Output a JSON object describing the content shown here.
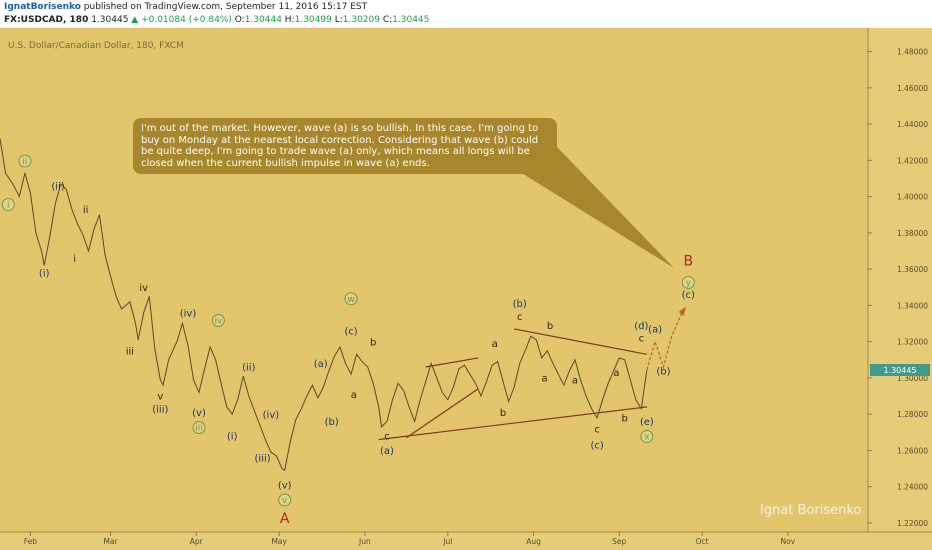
{
  "header": {
    "author": "IgnatBorisenko",
    "published_text": " published on TradingView.com, September 11, 2016 15:17 EST",
    "symbol": "FX:USDCAD, 180",
    "last": "1.30445",
    "change": "▲ +0.01084 (+0.84%)",
    "o_label": "O:",
    "o_value": "1.30444",
    "h_label": "H:",
    "h_value": "1.30499",
    "l_label": "L:",
    "l_value": "1.30209",
    "c_label": "C:",
    "c_value": "1.30445"
  },
  "legend": "U.S. Dollar/Canadian Dollar, 180, FXCM",
  "price_tag": "1.30445",
  "callout": "I'm out of the market. However, wave (a) is so bullish. In this case, I'm going to\nbuy on Monday at the nearest local correction. Considering that wave (b) could\nbe quite deep, I'm going to trade wave (a) only, which means all longs will be\nclosed when the current bullish impulse in wave (a) ends.",
  "signature": "Ignat Borisenko",
  "colors": {
    "background": "#e3c56b",
    "axis_bg": "#e6cc78",
    "line": "#5a4c28",
    "trend": "#7a3a1c",
    "green_circle": "#6f9a3c",
    "blue_text": "#1d3568",
    "red_label": "#b3261e",
    "callout": "#a8872c",
    "price_tag": "#3e9a8a"
  },
  "chart_data": {
    "type": "line",
    "title": "U.S. Dollar/Canadian Dollar, 180, FXCM",
    "x_ticks": [
      "Feb",
      "Mar",
      "Apr",
      "May",
      "Jun",
      "Jul",
      "Aug",
      "Sep",
      "Oct",
      "Nov"
    ],
    "y_ticks": [
      "1.48000",
      "1.46000",
      "1.44000",
      "1.42000",
      "1.40000",
      "1.38000",
      "1.36000",
      "1.34000",
      "1.32000",
      "1.30000",
      "1.28000",
      "1.26000",
      "1.24000",
      "1.22000"
    ],
    "ylim": [
      1.215,
      1.493
    ],
    "xlim": [
      "2016-01-21",
      "2016-11-30"
    ],
    "series": [
      {
        "values": [
          [
            "2016-01-21",
            1.432
          ],
          [
            "2016-01-23",
            1.413
          ],
          [
            "2016-01-26",
            1.406
          ],
          [
            "2016-01-28",
            1.4
          ],
          [
            "2016-01-30",
            1.413
          ],
          [
            "2016-02-01",
            1.402
          ],
          [
            "2016-02-03",
            1.38
          ],
          [
            "2016-02-05",
            1.37
          ],
          [
            "2016-02-06",
            1.362
          ],
          [
            "2016-02-08",
            1.378
          ],
          [
            "2016-02-10",
            1.396
          ],
          [
            "2016-02-12",
            1.407
          ],
          [
            "2016-02-14",
            1.404
          ],
          [
            "2016-02-16",
            1.393
          ],
          [
            "2016-02-18",
            1.385
          ],
          [
            "2016-02-20",
            1.379
          ],
          [
            "2016-02-22",
            1.37
          ],
          [
            "2016-02-24",
            1.382
          ],
          [
            "2016-02-26",
            1.39
          ],
          [
            "2016-02-28",
            1.368
          ],
          [
            "2016-03-01",
            1.356
          ],
          [
            "2016-03-03",
            1.345
          ],
          [
            "2016-03-05",
            1.338
          ],
          [
            "2016-03-08",
            1.342
          ],
          [
            "2016-03-10",
            1.33
          ],
          [
            "2016-03-11",
            1.321
          ],
          [
            "2016-03-13",
            1.336
          ],
          [
            "2016-03-15",
            1.345
          ],
          [
            "2016-03-17",
            1.316
          ],
          [
            "2016-03-19",
            1.299
          ],
          [
            "2016-03-20",
            1.296
          ],
          [
            "2016-03-22",
            1.31
          ],
          [
            "2016-03-25",
            1.32
          ],
          [
            "2016-03-27",
            1.33
          ],
          [
            "2016-03-29",
            1.318
          ],
          [
            "2016-03-31",
            1.299
          ],
          [
            "2016-04-02",
            1.292
          ],
          [
            "2016-04-04",
            1.305
          ],
          [
            "2016-04-06",
            1.317
          ],
          [
            "2016-04-08",
            1.31
          ],
          [
            "2016-04-10",
            1.297
          ],
          [
            "2016-04-12",
            1.284
          ],
          [
            "2016-04-14",
            1.28
          ],
          [
            "2016-04-16",
            1.288
          ],
          [
            "2016-04-18",
            1.301
          ],
          [
            "2016-04-20",
            1.29
          ],
          [
            "2016-04-22",
            1.282
          ],
          [
            "2016-04-24",
            1.274
          ],
          [
            "2016-04-26",
            1.266
          ],
          [
            "2016-04-28",
            1.259
          ],
          [
            "2016-04-30",
            1.257
          ],
          [
            "2016-05-02",
            1.25
          ],
          [
            "2016-05-03",
            1.249
          ],
          [
            "2016-05-05",
            1.265
          ],
          [
            "2016-05-07",
            1.277
          ],
          [
            "2016-05-09",
            1.283
          ],
          [
            "2016-05-11",
            1.29
          ],
          [
            "2016-05-13",
            1.296
          ],
          [
            "2016-05-15",
            1.289
          ],
          [
            "2016-05-17",
            1.295
          ],
          [
            "2016-05-19",
            1.304
          ],
          [
            "2016-05-21",
            1.312
          ],
          [
            "2016-05-23",
            1.317
          ],
          [
            "2016-05-25",
            1.308
          ],
          [
            "2016-05-27",
            1.302
          ],
          [
            "2016-05-29",
            1.313
          ],
          [
            "2016-05-31",
            1.309
          ],
          [
            "2016-06-02",
            1.306
          ],
          [
            "2016-06-04",
            1.297
          ],
          [
            "2016-06-06",
            1.284
          ],
          [
            "2016-06-07",
            1.273
          ],
          [
            "2016-06-09",
            1.276
          ],
          [
            "2016-06-11",
            1.288
          ],
          [
            "2016-06-13",
            1.297
          ],
          [
            "2016-06-15",
            1.293
          ],
          [
            "2016-06-17",
            1.284
          ],
          [
            "2016-06-19",
            1.276
          ],
          [
            "2016-06-21",
            1.288
          ],
          [
            "2016-06-23",
            1.298
          ],
          [
            "2016-06-25",
            1.308
          ],
          [
            "2016-06-27",
            1.3
          ],
          [
            "2016-06-29",
            1.292
          ],
          [
            "2016-07-01",
            1.288
          ],
          [
            "2016-07-03",
            1.295
          ],
          [
            "2016-07-05",
            1.305
          ],
          [
            "2016-07-07",
            1.307
          ],
          [
            "2016-07-09",
            1.302
          ],
          [
            "2016-07-11",
            1.297
          ],
          [
            "2016-07-13",
            1.29
          ],
          [
            "2016-07-15",
            1.298
          ],
          [
            "2016-07-17",
            1.307
          ],
          [
            "2016-07-19",
            1.309
          ],
          [
            "2016-07-21",
            1.298
          ],
          [
            "2016-07-23",
            1.287
          ],
          [
            "2016-07-25",
            1.295
          ],
          [
            "2016-07-27",
            1.308
          ],
          [
            "2016-07-29",
            1.315
          ],
          [
            "2016-07-31",
            1.323
          ],
          [
            "2016-08-02",
            1.321
          ],
          [
            "2016-08-04",
            1.311
          ],
          [
            "2016-08-06",
            1.315
          ],
          [
            "2016-08-08",
            1.308
          ],
          [
            "2016-08-10",
            1.302
          ],
          [
            "2016-08-12",
            1.296
          ],
          [
            "2016-08-14",
            1.304
          ],
          [
            "2016-08-16",
            1.31
          ],
          [
            "2016-08-18",
            1.299
          ],
          [
            "2016-08-20",
            1.29
          ],
          [
            "2016-08-22",
            1.283
          ],
          [
            "2016-08-24",
            1.278
          ],
          [
            "2016-08-26",
            1.288
          ],
          [
            "2016-08-28",
            1.297
          ],
          [
            "2016-08-30",
            1.304
          ],
          [
            "2016-09-01",
            1.311
          ],
          [
            "2016-09-03",
            1.31
          ],
          [
            "2016-09-05",
            1.299
          ],
          [
            "2016-09-07",
            1.288
          ],
          [
            "2016-09-09",
            1.283
          ],
          [
            "2016-09-11",
            1.3045
          ]
        ]
      }
    ],
    "projection": [
      [
        "2016-09-11",
        1.3045
      ],
      [
        "2016-09-14",
        1.32
      ],
      [
        "2016-09-17",
        1.306
      ],
      [
        "2016-09-20",
        1.323
      ],
      [
        "2016-09-24",
        1.337
      ]
    ],
    "trendlines": [
      [
        [
          "2016-06-06",
          1.266
        ],
        [
          "2016-09-11",
          1.284
        ]
      ],
      [
        [
          "2016-07-25",
          1.327
        ],
        [
          "2016-09-11",
          1.313
        ]
      ],
      [
        [
          "2016-06-16",
          1.267
        ],
        [
          "2016-07-12",
          1.294
        ]
      ],
      [
        [
          "2016-06-23",
          1.306
        ],
        [
          "2016-07-12",
          1.311
        ]
      ]
    ],
    "wave_labels": [
      {
        "text": "ii",
        "date": "2016-01-30",
        "price": 1.418,
        "style": "circle"
      },
      {
        "text": "i",
        "date": "2016-01-24",
        "price": 1.394,
        "style": "circle"
      },
      {
        "text": "(ii)",
        "date": "2016-02-11",
        "price": 1.404,
        "style": "blue"
      },
      {
        "text": "(i)",
        "date": "2016-02-06",
        "price": 1.356,
        "style": "blue"
      },
      {
        "text": "ii",
        "date": "2016-02-21",
        "price": 1.391,
        "style": "dark"
      },
      {
        "text": "i",
        "date": "2016-02-17",
        "price": 1.364,
        "style": "dark"
      },
      {
        "text": "iv",
        "date": "2016-03-13",
        "price": 1.348,
        "style": "dark"
      },
      {
        "text": "iii",
        "date": "2016-03-08",
        "price": 1.313,
        "style": "dark"
      },
      {
        "text": "v",
        "date": "2016-03-19",
        "price": 1.288,
        "style": "dark"
      },
      {
        "text": "(iii)",
        "date": "2016-03-19",
        "price": 1.281,
        "style": "blue"
      },
      {
        "text": "(iv)",
        "date": "2016-03-29",
        "price": 1.334,
        "style": "blue"
      },
      {
        "text": "iv",
        "date": "2016-04-09",
        "price": 1.33,
        "style": "circle"
      },
      {
        "text": "(v)",
        "date": "2016-04-02",
        "price": 1.279,
        "style": "blue"
      },
      {
        "text": "iii",
        "date": "2016-04-02",
        "price": 1.271,
        "style": "circle"
      },
      {
        "text": "(ii)",
        "date": "2016-04-20",
        "price": 1.304,
        "style": "blue"
      },
      {
        "text": "(iv)",
        "date": "2016-04-28",
        "price": 1.278,
        "style": "blue"
      },
      {
        "text": "(i)",
        "date": "2016-04-14",
        "price": 1.266,
        "style": "blue"
      },
      {
        "text": "(iii)",
        "date": "2016-04-25",
        "price": 1.254,
        "style": "blue"
      },
      {
        "text": "(v)",
        "date": "2016-05-03",
        "price": 1.239,
        "style": "blue"
      },
      {
        "text": "v",
        "date": "2016-05-03",
        "price": 1.231,
        "style": "circle"
      },
      {
        "text": "A",
        "date": "2016-05-03",
        "price": 1.22,
        "style": "red"
      },
      {
        "text": "(a)",
        "date": "2016-05-16",
        "price": 1.306,
        "style": "blue"
      },
      {
        "text": "(b)",
        "date": "2016-05-20",
        "price": 1.274,
        "style": "blue"
      },
      {
        "text": "a",
        "date": "2016-05-28",
        "price": 1.289,
        "style": "dark"
      },
      {
        "text": "w",
        "date": "2016-05-27",
        "price": 1.342,
        "style": "circle"
      },
      {
        "text": "(c)",
        "date": "2016-05-27",
        "price": 1.324,
        "style": "blue"
      },
      {
        "text": "b",
        "date": "2016-06-04",
        "price": 1.318,
        "style": "dark"
      },
      {
        "text": "c",
        "date": "2016-06-09",
        "price": 1.266,
        "style": "dark"
      },
      {
        "text": "(a)",
        "date": "2016-06-09",
        "price": 1.258,
        "style": "blue"
      },
      {
        "text": "a",
        "date": "2016-07-18",
        "price": 1.317,
        "style": "dark"
      },
      {
        "text": "b",
        "date": "2016-07-21",
        "price": 1.279,
        "style": "dark"
      },
      {
        "text": "(b)",
        "date": "2016-07-27",
        "price": 1.339,
        "style": "blue"
      },
      {
        "text": "c",
        "date": "2016-07-27",
        "price": 1.332,
        "style": "dark"
      },
      {
        "text": "b",
        "date": "2016-08-07",
        "price": 1.327,
        "style": "dark"
      },
      {
        "text": "a",
        "date": "2016-08-05",
        "price": 1.298,
        "style": "dark"
      },
      {
        "text": "a",
        "date": "2016-08-16",
        "price": 1.297,
        "style": "dark"
      },
      {
        "text": "c",
        "date": "2016-08-24",
        "price": 1.27,
        "style": "dark"
      },
      {
        "text": "(c)",
        "date": "2016-08-24",
        "price": 1.261,
        "style": "blue"
      },
      {
        "text": "a",
        "date": "2016-08-31",
        "price": 1.301,
        "style": "dark"
      },
      {
        "text": "b",
        "date": "2016-09-03",
        "price": 1.276,
        "style": "dark"
      },
      {
        "text": "(d)",
        "date": "2016-09-09",
        "price": 1.327,
        "style": "blue"
      },
      {
        "text": "c",
        "date": "2016-09-09",
        "price": 1.32,
        "style": "dark"
      },
      {
        "text": "(e)",
        "date": "2016-09-11",
        "price": 1.274,
        "style": "blue"
      },
      {
        "text": "x",
        "date": "2016-09-11",
        "price": 1.266,
        "style": "circle"
      },
      {
        "text": "(a)",
        "date": "2016-09-14",
        "price": 1.325,
        "style": "blue"
      },
      {
        "text": "(b)",
        "date": "2016-09-17",
        "price": 1.302,
        "style": "blue"
      },
      {
        "text": "B",
        "date": "2016-09-26",
        "price": 1.362,
        "style": "red"
      },
      {
        "text": "y",
        "date": "2016-09-26",
        "price": 1.351,
        "style": "circle"
      },
      {
        "text": "(c)",
        "date": "2016-09-26",
        "price": 1.344,
        "style": "blue"
      }
    ]
  }
}
